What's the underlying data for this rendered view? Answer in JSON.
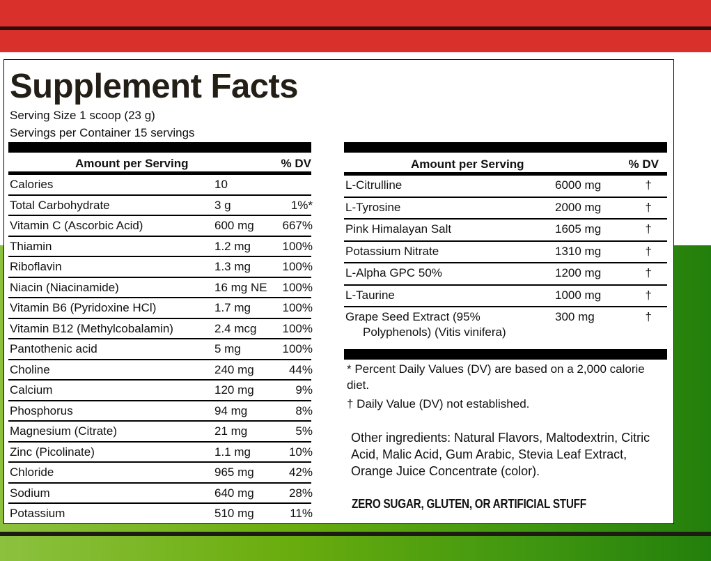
{
  "title": "Supplement Facts",
  "serving_size": "Serving Size 1 scoop (23 g)",
  "servings_per_container": "Servings per Container 15 servings",
  "left_table": {
    "header_amount": "Amount per Serving",
    "header_dv": "% DV",
    "rows": [
      {
        "name": "Calories",
        "amount": "10",
        "dv": ""
      },
      {
        "name": "Total Carbohydrate",
        "amount": "3 g",
        "dv": "1%*"
      },
      {
        "name": "Vitamin C (Ascorbic Acid)",
        "amount": "600 mg",
        "dv": "667%"
      },
      {
        "name": "Thiamin",
        "amount": "1.2 mg",
        "dv": "100%"
      },
      {
        "name": "Riboflavin",
        "amount": "1.3 mg",
        "dv": "100%"
      },
      {
        "name": "Niacin (Niacinamide)",
        "amount": "16 mg NE",
        "dv": "100%"
      },
      {
        "name": "Vitamin B6 (Pyridoxine HCl)",
        "amount": "1.7 mg",
        "dv": "100%"
      },
      {
        "name": "Vitamin B12 (Methylcobalamin)",
        "amount": "2.4 mcg",
        "dv": "100%"
      },
      {
        "name": "Pantothenic acid",
        "amount": "5 mg",
        "dv": "100%"
      },
      {
        "name": "Choline",
        "amount": "240 mg",
        "dv": "44%"
      },
      {
        "name": "Calcium",
        "amount": "120 mg",
        "dv": "9%"
      },
      {
        "name": "Phosphorus",
        "amount": "94 mg",
        "dv": "8%"
      },
      {
        "name": "Magnesium (Citrate)",
        "amount": "21 mg",
        "dv": "5%"
      },
      {
        "name": "Zinc (Picolinate)",
        "amount": "1.1 mg",
        "dv": "10%"
      },
      {
        "name": "Chloride",
        "amount": "965 mg",
        "dv": "42%"
      },
      {
        "name": "Sodium",
        "amount": "640 mg",
        "dv": "28%"
      },
      {
        "name": "Potassium",
        "amount": "510 mg",
        "dv": "11%"
      }
    ]
  },
  "right_table": {
    "header_amount": "Amount per Serving",
    "header_dv": "% DV",
    "rows": [
      {
        "name": "L-Citrulline",
        "amount": "6000 mg",
        "dv": "†"
      },
      {
        "name": "L-Tyrosine",
        "amount": "2000 mg",
        "dv": "†"
      },
      {
        "name": "Pink Himalayan Salt",
        "amount": "1605 mg",
        "dv": "†"
      },
      {
        "name": "Potassium Nitrate",
        "amount": "1310 mg",
        "dv": "†"
      },
      {
        "name": "L-Alpha GPC 50%",
        "amount": "1200 mg",
        "dv": "†"
      },
      {
        "name": "L-Taurine",
        "amount": "1000 mg",
        "dv": "†"
      },
      {
        "name": "Grape Seed Extract (95%",
        "name2": "Polyphenols) (Vitis vinifera)",
        "amount": "300 mg",
        "dv": "†"
      }
    ]
  },
  "footnote_dv": "* Percent Daily Values (DV) are based on a 2,000 calorie diet.",
  "footnote_dagger": "† Daily Value (DV) not established.",
  "other_ingredients": "Other ingredients: Natural Flavors, Maltodextrin, Citric Acid, Malic Acid, Gum Arabic, Stevia Leaf Extract, Orange Juice Concentrate (color).",
  "tagline": "ZERO SUGAR, GLUTEN, OR ARTIFICIAL STUFF"
}
